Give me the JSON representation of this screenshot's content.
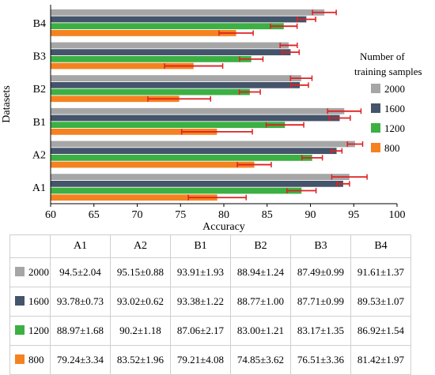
{
  "chart_data": {
    "type": "bar",
    "orientation": "horizontal",
    "categories": [
      "A1",
      "A2",
      "B1",
      "B2",
      "B3",
      "B4"
    ],
    "series": [
      {
        "name": "2000",
        "color": "#a6a6a6",
        "values": [
          94.5,
          95.15,
          93.91,
          88.94,
          87.49,
          91.61
        ],
        "errors": [
          2.04,
          0.88,
          1.93,
          1.24,
          0.99,
          1.37
        ]
      },
      {
        "name": "1600",
        "color": "#44546a",
        "values": [
          93.78,
          93.02,
          93.38,
          88.77,
          87.71,
          89.53
        ],
        "errors": [
          0.73,
          0.62,
          1.22,
          1.0,
          0.99,
          1.07
        ]
      },
      {
        "name": "1200",
        "color": "#3cb043",
        "values": [
          88.97,
          90.2,
          87.06,
          83.0,
          83.17,
          86.92
        ],
        "errors": [
          1.68,
          1.18,
          2.17,
          1.21,
          1.35,
          1.54
        ]
      },
      {
        "name": "800",
        "color": "#f58220",
        "values": [
          79.24,
          83.52,
          79.21,
          74.85,
          76.51,
          81.42
        ],
        "errors": [
          3.34,
          1.96,
          4.08,
          3.62,
          3.36,
          1.97
        ]
      }
    ],
    "error_bar_color": "#e02020",
    "xlabel": "Accuracy",
    "ylabel": "Datasets",
    "xlim": [
      60,
      100
    ],
    "xticks": [
      "60",
      "65",
      "70",
      "75",
      "80",
      "85",
      "90",
      "95",
      "100"
    ],
    "legend_title": [
      "Number of",
      "training samples"
    ],
    "legend_order": [
      "2000",
      "1600",
      "1200",
      "800"
    ],
    "legend_placement": "right",
    "grid": false
  },
  "table": {
    "columns": [
      "A1",
      "A2",
      "B1",
      "B2",
      "B3",
      "B4"
    ],
    "rows": [
      {
        "label": "2000",
        "color": "#a6a6a6",
        "cells": [
          "94.5±2.04",
          "95.15±0.88",
          "93.91±1.93",
          "88.94±1.24",
          "87.49±0.99",
          "91.61±1.37"
        ]
      },
      {
        "label": "1600",
        "color": "#44546a",
        "cells": [
          "93.78±0.73",
          "93.02±0.62",
          "93.38±1.22",
          "88.77±1.00",
          "87.71±0.99",
          "89.53±1.07"
        ]
      },
      {
        "label": "1200",
        "color": "#3cb043",
        "cells": [
          "88.97±1.68",
          "90.2±1.18",
          "87.06±2.17",
          "83.00±1.21",
          "83.17±1.35",
          "86.92±1.54"
        ]
      },
      {
        "label": "800",
        "color": "#f58220",
        "cells": [
          "79.24±3.34",
          "83.52±1.96",
          "79.21±4.08",
          "74.85±3.62",
          "76.51±3.36",
          "81.42±1.97"
        ]
      }
    ]
  }
}
